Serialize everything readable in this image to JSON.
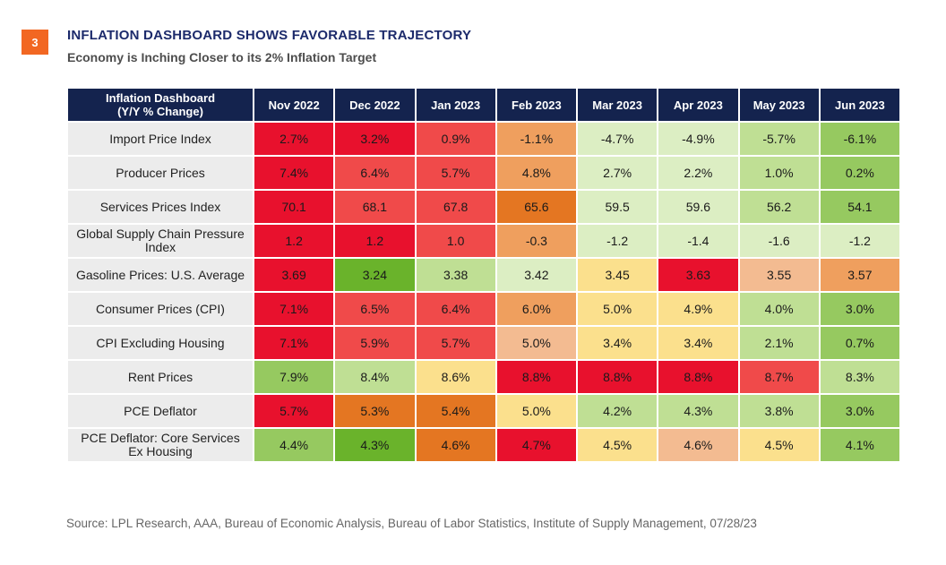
{
  "badge": "3",
  "title": "INFLATION DASHBOARD SHOWS FAVORABLE TRAJECTORY",
  "subtitle": "Economy is Inching Closer to its 2% Inflation Target",
  "source": "Source: LPL Research, AAA, Bureau of Economic Analysis, Bureau of Labor Statistics, Institute of Supply Management,  07/28/23",
  "colors": {
    "header_bg": "#14234e",
    "badge": "#f26722",
    "label_bg": "#ececec",
    "heat": {
      "red": "#e8112d",
      "red_light": "#f04a4a",
      "orange": "#e47622",
      "orange_light": "#ef9f5e",
      "peach": "#f3bb91",
      "yellow": "#fbe08d",
      "green_pale": "#dceec3",
      "green_light": "#bfdf94",
      "green": "#96c960",
      "green_dark": "#6ab32b"
    }
  },
  "chart_data": {
    "type": "table",
    "title": "INFLATION DASHBOARD SHOWS FAVORABLE TRAJECTORY",
    "subtitle": "Economy is Inching Closer to its 2% Inflation Target",
    "corner_header": "Inflation Dashboard\n(Y/Y % Change)",
    "columns": [
      "Nov 2022",
      "Dec 2022",
      "Jan 2023",
      "Feb 2023",
      "Mar 2023",
      "Apr 2023",
      "May 2023",
      "Jun 2023"
    ],
    "rows": [
      {
        "label": "Import Price Index",
        "values": [
          "2.7%",
          "3.2%",
          "0.9%",
          "-1.1%",
          "-4.7%",
          "-4.9%",
          "-5.7%",
          "-6.1%"
        ],
        "colors": [
          "red",
          "red",
          "red_light",
          "orange_light",
          "green_pale",
          "green_pale",
          "green_light",
          "green"
        ]
      },
      {
        "label": "Producer Prices",
        "values": [
          "7.4%",
          "6.4%",
          "5.7%",
          "4.8%",
          "2.7%",
          "2.2%",
          "1.0%",
          "0.2%"
        ],
        "colors": [
          "red",
          "red_light",
          "red_light",
          "orange_light",
          "green_pale",
          "green_pale",
          "green_light",
          "green"
        ]
      },
      {
        "label": "Services Prices Index",
        "values": [
          "70.1",
          "68.1",
          "67.8",
          "65.6",
          "59.5",
          "59.6",
          "56.2",
          "54.1"
        ],
        "colors": [
          "red",
          "red_light",
          "red_light",
          "orange",
          "green_pale",
          "green_pale",
          "green_light",
          "green"
        ]
      },
      {
        "label": "Global Supply Chain Pressure\nIndex",
        "values": [
          "1.2",
          "1.2",
          "1.0",
          "-0.3",
          "-1.2",
          "-1.4",
          "-1.6",
          "-1.2"
        ],
        "colors": [
          "red",
          "red",
          "red_light",
          "orange_light",
          "green_pale",
          "green_pale",
          "green_pale",
          "green_pale"
        ]
      },
      {
        "label": "Gasoline Prices: U.S. Average",
        "values": [
          "3.69",
          "3.24",
          "3.38",
          "3.42",
          "3.45",
          "3.63",
          "3.55",
          "3.57"
        ],
        "colors": [
          "red",
          "green_dark",
          "green_light",
          "green_pale",
          "yellow",
          "red",
          "peach",
          "orange_light"
        ]
      },
      {
        "label": "Consumer Prices  (CPI)",
        "values": [
          "7.1%",
          "6.5%",
          "6.4%",
          "6.0%",
          "5.0%",
          "4.9%",
          "4.0%",
          "3.0%"
        ],
        "colors": [
          "red",
          "red_light",
          "red_light",
          "orange_light",
          "yellow",
          "yellow",
          "green_light",
          "green"
        ]
      },
      {
        "label": "CPI Excluding Housing",
        "values": [
          "7.1%",
          "5.9%",
          "5.7%",
          "5.0%",
          "3.4%",
          "3.4%",
          "2.1%",
          "0.7%"
        ],
        "colors": [
          "red",
          "red_light",
          "red_light",
          "peach",
          "yellow",
          "yellow",
          "green_light",
          "green"
        ]
      },
      {
        "label": "Rent Prices",
        "values": [
          "7.9%",
          "8.4%",
          "8.6%",
          "8.8%",
          "8.8%",
          "8.8%",
          "8.7%",
          "8.3%"
        ],
        "colors": [
          "green",
          "green_light",
          "yellow",
          "red",
          "red",
          "red",
          "red_light",
          "green_light"
        ]
      },
      {
        "label": "PCE Deflator",
        "values": [
          "5.7%",
          "5.3%",
          "5.4%",
          "5.0%",
          "4.2%",
          "4.3%",
          "3.8%",
          "3.0%"
        ],
        "colors": [
          "red",
          "orange",
          "orange",
          "yellow",
          "green_light",
          "green_light",
          "green_light",
          "green"
        ]
      },
      {
        "label": "PCE Deflator: Core Services\nEx Housing",
        "values": [
          "4.4%",
          "4.3%",
          "4.6%",
          "4.7%",
          "4.5%",
          "4.6%",
          "4.5%",
          "4.1%"
        ],
        "colors": [
          "green",
          "green_dark",
          "orange",
          "red",
          "yellow",
          "peach",
          "yellow",
          "green"
        ]
      }
    ]
  }
}
